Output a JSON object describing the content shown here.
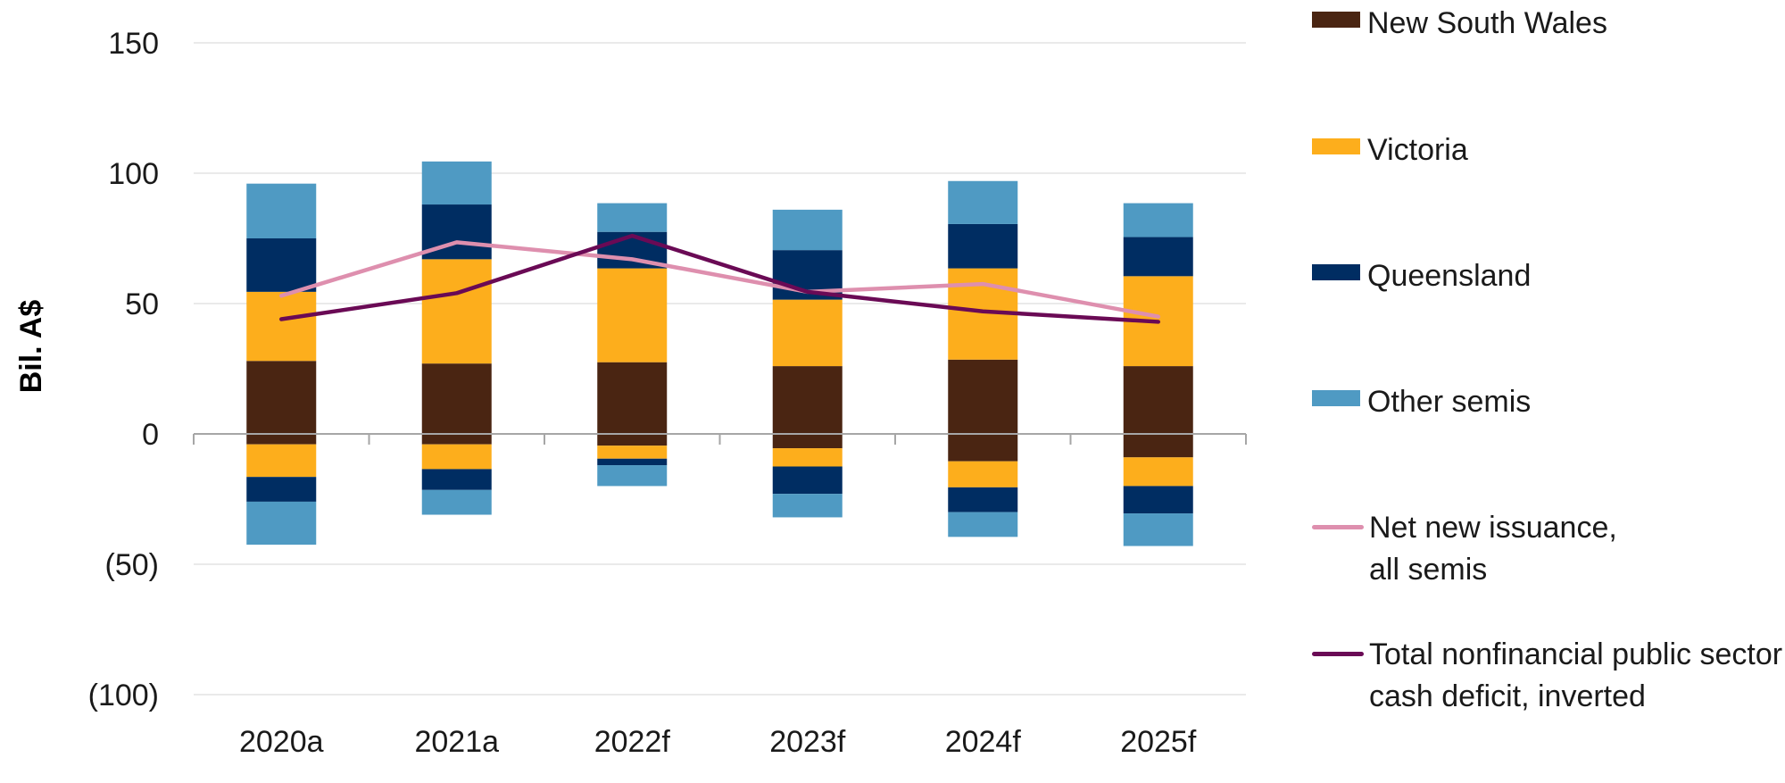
{
  "chart_data": {
    "type": "bar",
    "stacked": true,
    "categories": [
      "2020a",
      "2021a",
      "2022f",
      "2023f",
      "2024f",
      "2025f"
    ],
    "ylabel": "Bil. A$",
    "ylim": [
      -100,
      150
    ],
    "yticks": [
      150,
      100,
      50,
      0,
      -50,
      -100
    ],
    "ytick_labels": [
      "150",
      "100",
      "50",
      "0",
      "(50)",
      "(100)"
    ],
    "grid": true,
    "legend_position": "right",
    "series": [
      {
        "name": "New South Wales",
        "type": "bar",
        "color": "#4a2512",
        "positive": [
          28,
          27,
          27.5,
          26,
          28.5,
          26
        ],
        "negative": [
          -4,
          -4,
          -4.5,
          -5.5,
          -10.5,
          -9
        ]
      },
      {
        "name": "Victoria",
        "type": "bar",
        "color": "#fdae1c",
        "positive": [
          26.5,
          40,
          36,
          25.5,
          35,
          34.5
        ],
        "negative": [
          -12.5,
          -9.5,
          -5,
          -7,
          -10,
          -11
        ]
      },
      {
        "name": "Queensland",
        "type": "bar",
        "color": "#002d62",
        "positive": [
          20.5,
          21,
          14,
          19,
          17,
          15
        ],
        "negative": [
          -9.5,
          -8,
          -2.5,
          -10.5,
          -9.5,
          -10.5
        ]
      },
      {
        "name": "Other semis",
        "type": "bar",
        "color": "#4f9ac3",
        "positive": [
          21,
          16.5,
          11,
          15.5,
          16.5,
          13
        ],
        "negative": [
          -16.5,
          -9.5,
          -8,
          -9,
          -9.5,
          -12.5
        ]
      },
      {
        "name": "Net new issuance,\nall semis",
        "type": "line",
        "color": "#de8fae",
        "values": [
          53,
          73.5,
          67,
          54.5,
          57.5,
          45
        ]
      },
      {
        "name": "Total nonfinancial public sector\ncash deficit, inverted",
        "type": "line",
        "color": "#6a0a55",
        "values": [
          44,
          54,
          76,
          54.5,
          47,
          43
        ]
      }
    ]
  }
}
